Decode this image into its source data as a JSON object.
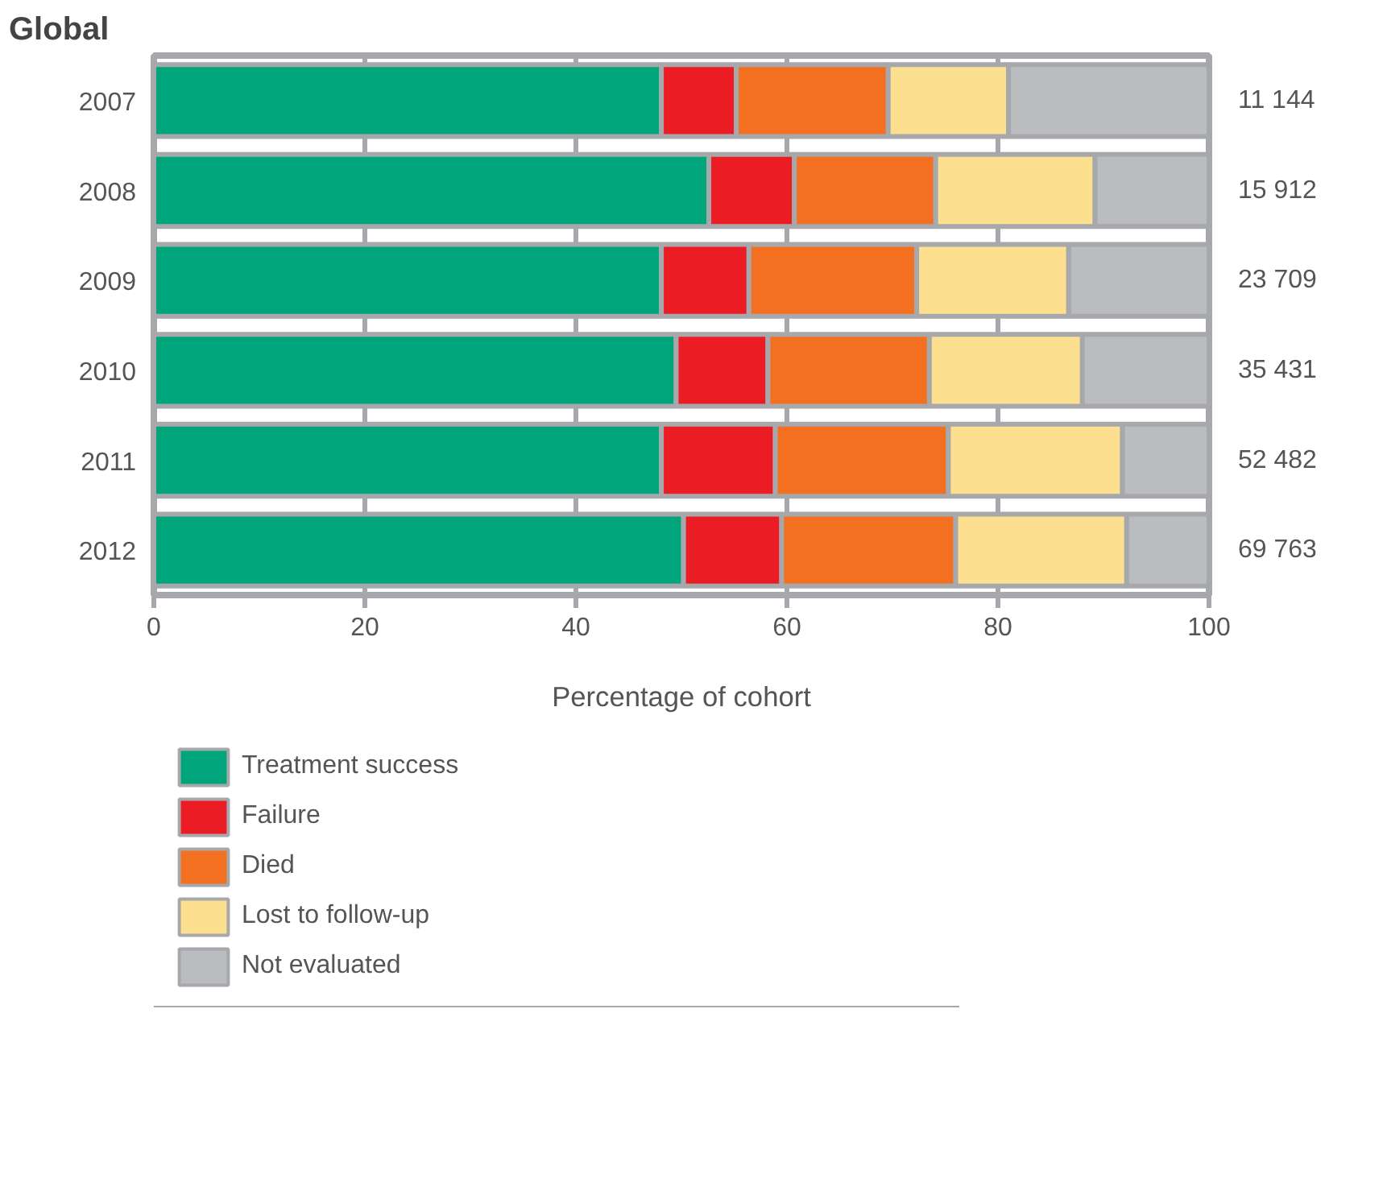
{
  "chart_data": {
    "type": "bar",
    "orientation": "horizontal",
    "stacked": true,
    "title": "Global",
    "xlabel": "Percentage of cohort",
    "categories": [
      "2007",
      "2008",
      "2009",
      "2010",
      "2011",
      "2012"
    ],
    "series": [
      {
        "name": "Treatment success",
        "color": "#00a57c",
        "values": [
          48.1,
          52.6,
          48.1,
          49.5,
          48.1,
          50.2
        ]
      },
      {
        "name": "Failure",
        "color": "#ec1c24",
        "values": [
          7.1,
          8.1,
          8.3,
          8.7,
          10.8,
          9.3
        ]
      },
      {
        "name": "Died",
        "color": "#f37021",
        "values": [
          14.4,
          13.4,
          15.9,
          15.3,
          16.4,
          16.5
        ]
      },
      {
        "name": "Lost to follow-up",
        "color": "#fde08f",
        "values": [
          11.4,
          15.1,
          14.4,
          14.5,
          16.5,
          16.2
        ]
      },
      {
        "name": "Not evaluated",
        "color": "#bbbcc0",
        "values": [
          19.0,
          10.8,
          13.3,
          12.0,
          8.2,
          7.8
        ]
      }
    ],
    "xlim": [
      0,
      100
    ],
    "xticks": [
      0,
      20,
      40,
      60,
      80,
      100
    ],
    "grid": "x",
    "legend": "bottom",
    "annotations": [
      "11 144",
      "15 912",
      "23 709",
      "35 431",
      "52 482",
      "69 763"
    ]
  }
}
